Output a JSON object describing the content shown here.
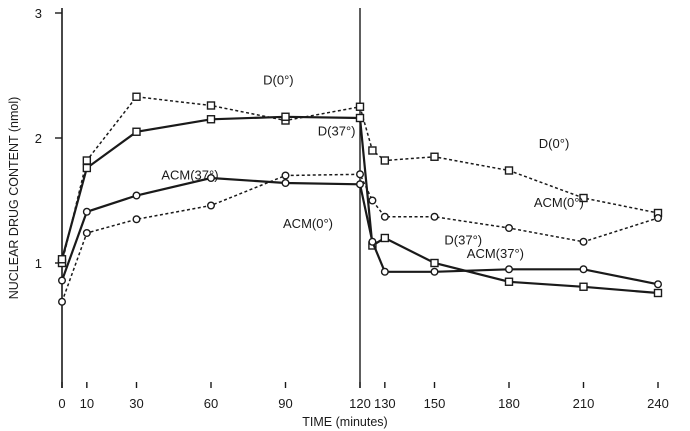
{
  "chart_data": {
    "type": "line",
    "title": "",
    "xlabel": "TIME (minutes)",
    "ylabel": "NUCLEAR DRUG CONTENT (nmol)",
    "xlim": [
      0,
      240
    ],
    "ylim": [
      0,
      3
    ],
    "x_ticks": [
      0,
      10,
      30,
      60,
      90,
      120,
      130,
      150,
      180,
      210,
      240
    ],
    "y_ticks": [
      1,
      2,
      3
    ],
    "grid": false,
    "reference_line_x": 120,
    "series": [
      {
        "name": "D(0°)",
        "line_style": "dashed",
        "marker": "square",
        "points": [
          [
            0,
            1.0
          ],
          [
            10,
            1.82
          ],
          [
            30,
            2.33
          ],
          [
            60,
            2.26
          ],
          [
            90,
            2.14
          ],
          [
            120,
            2.25
          ],
          [
            125,
            1.9
          ],
          [
            130,
            1.82
          ],
          [
            150,
            1.85
          ],
          [
            180,
            1.74
          ],
          [
            210,
            1.52
          ],
          [
            240,
            1.4
          ]
        ]
      },
      {
        "name": "D(37°)",
        "line_style": "solid",
        "marker": "square",
        "points": [
          [
            0,
            1.03
          ],
          [
            10,
            1.76
          ],
          [
            30,
            2.05
          ],
          [
            60,
            2.15
          ],
          [
            90,
            2.17
          ],
          [
            120,
            2.16
          ],
          [
            125,
            1.14
          ],
          [
            130,
            1.2
          ],
          [
            150,
            1.0
          ],
          [
            180,
            0.85
          ],
          [
            210,
            0.81
          ],
          [
            240,
            0.76
          ]
        ]
      },
      {
        "name": "ACM(37°)",
        "line_style": "solid",
        "marker": "circle",
        "points": [
          [
            0,
            0.86
          ],
          [
            10,
            1.41
          ],
          [
            30,
            1.54
          ],
          [
            60,
            1.68
          ],
          [
            90,
            1.64
          ],
          [
            120,
            1.63
          ],
          [
            125,
            1.17
          ],
          [
            130,
            0.93
          ],
          [
            150,
            0.93
          ],
          [
            180,
            0.95
          ],
          [
            210,
            0.95
          ],
          [
            240,
            0.83
          ]
        ]
      },
      {
        "name": "ACM(0°)",
        "line_style": "dashed",
        "marker": "circle",
        "points": [
          [
            0,
            0.69
          ],
          [
            10,
            1.24
          ],
          [
            30,
            1.35
          ],
          [
            60,
            1.46
          ],
          [
            90,
            1.7
          ],
          [
            120,
            1.71
          ],
          [
            125,
            1.5
          ],
          [
            130,
            1.37
          ],
          [
            150,
            1.37
          ],
          [
            180,
            1.28
          ],
          [
            210,
            1.17
          ],
          [
            240,
            1.36
          ]
        ]
      }
    ],
    "labels": [
      {
        "text": "D(0°)",
        "x": 81,
        "y": 2.43
      },
      {
        "text": "D(37°)",
        "x": 103,
        "y": 2.02
      },
      {
        "text": "ACM(37°)",
        "x": 40,
        "y": 1.67
      },
      {
        "text": "ACM(0°)",
        "x": 89,
        "y": 1.28
      },
      {
        "text": "D(0°)",
        "x": 192,
        "y": 1.92
      },
      {
        "text": "ACM(0°)",
        "x": 190,
        "y": 1.45
      },
      {
        "text": "D(37°)",
        "x": 154,
        "y": 1.15
      },
      {
        "text": "ACM(37°)",
        "x": 163,
        "y": 1.04
      }
    ]
  }
}
